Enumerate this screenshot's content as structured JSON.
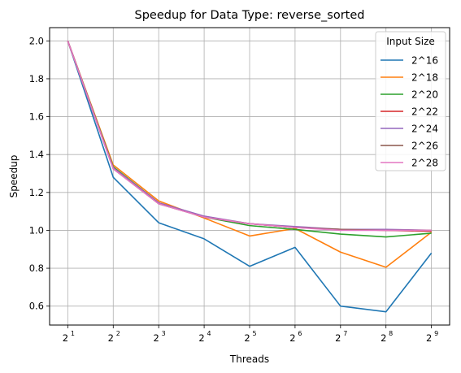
{
  "chart_data": {
    "type": "line",
    "title": "Speedup for Data Type: reverse_sorted",
    "xlabel": "Threads",
    "ylabel": "Speedup",
    "x": [
      2,
      4,
      8,
      16,
      32,
      64,
      128,
      256,
      512
    ],
    "x_tick_base": "2",
    "x_tick_exponents": [
      "1",
      "2",
      "3",
      "4",
      "5",
      "6",
      "7",
      "8",
      "9"
    ],
    "x_scale": "log2",
    "y_ticks": [
      "0.6",
      "0.8",
      "1.0",
      "1.2",
      "1.4",
      "1.6",
      "1.8",
      "2.0"
    ],
    "ylim": [
      0.5,
      2.07
    ],
    "grid": true,
    "legend": {
      "title": "Input Size",
      "placement": "top-right"
    },
    "series": [
      {
        "name": "2^16",
        "color": "#1f77b4",
        "values": [
          2.0,
          1.28,
          1.04,
          0.955,
          0.81,
          0.91,
          0.6,
          0.57,
          0.88
        ]
      },
      {
        "name": "2^18",
        "color": "#ff7f0e",
        "values": [
          2.0,
          1.345,
          1.155,
          1.065,
          0.97,
          1.01,
          0.885,
          0.805,
          0.99
        ]
      },
      {
        "name": "2^20",
        "color": "#2ca02c",
        "values": [
          2.0,
          1.335,
          1.145,
          1.07,
          1.025,
          1.005,
          0.98,
          0.965,
          0.985
        ]
      },
      {
        "name": "2^22",
        "color": "#d62728",
        "values": [
          2.0,
          1.33,
          1.145,
          1.07,
          1.035,
          1.015,
          1.005,
          1.0,
          0.995
        ]
      },
      {
        "name": "2^24",
        "color": "#9467bd",
        "values": [
          2.0,
          1.33,
          1.145,
          1.075,
          1.035,
          1.02,
          1.005,
          1.005,
          1.0
        ]
      },
      {
        "name": "2^26",
        "color": "#8c564b",
        "values": [
          2.0,
          1.325,
          1.14,
          1.07,
          1.035,
          1.015,
          1.005,
          1.0,
          1.0
        ]
      },
      {
        "name": "2^28",
        "color": "#e377c2",
        "values": [
          2.0,
          1.325,
          1.14,
          1.07,
          1.035,
          1.015,
          1.0,
          1.0,
          1.0
        ]
      }
    ]
  }
}
